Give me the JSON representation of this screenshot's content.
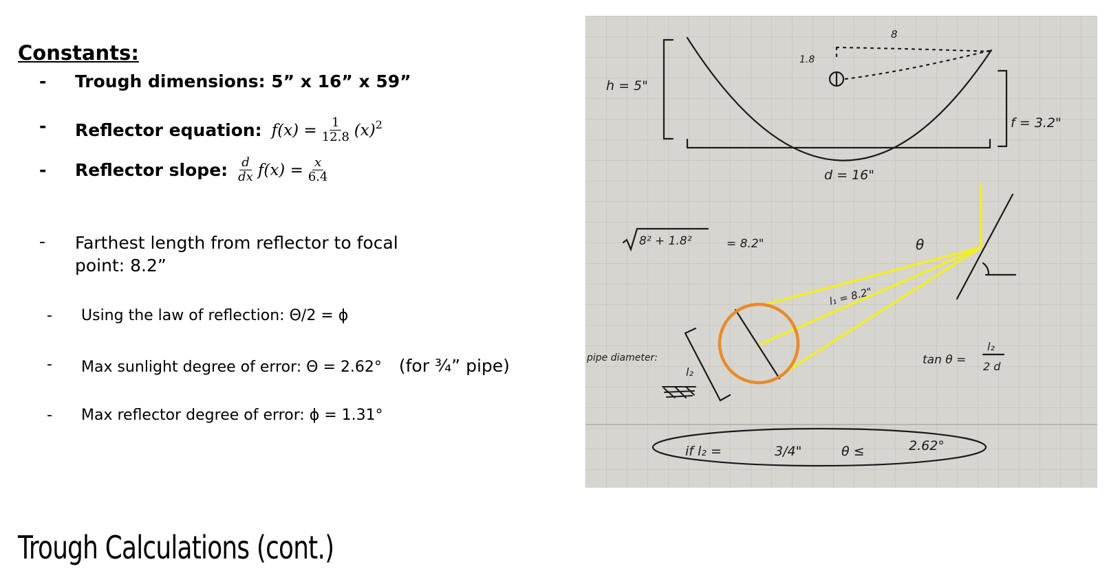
{
  "heading": "Constants:",
  "constants": {
    "trough": "Trough dimensions: 5” x 16” x 59”",
    "reflector_label": "Reflector equation:",
    "reflector_lhs": "f(x) =",
    "reflector_num": "1",
    "reflector_den": "12.8",
    "reflector_rhs": "(x)",
    "reflector_exp": "2",
    "slope_label": "Reflector slope:",
    "slope_d_num": "d",
    "slope_d_den": "dx",
    "slope_mid": "f(x) =",
    "slope_num": "x",
    "slope_den": "6.4"
  },
  "notes": {
    "farthest_line1": "Farthest length from reflector to focal",
    "farthest_line2": "point: 8.2”",
    "law": "Using the law of reflection: Θ/2 = ϕ",
    "sun_error": "Max sunlight degree of error: Θ = 2.62°",
    "sun_error_note": "(for  ¾” pipe)",
    "reflector_error": "Max reflector degree of error: ϕ = 1.31°"
  },
  "title": "Trough Calculations (cont.)",
  "sketch": {
    "h": "h = 5\"",
    "f": "f = 3.2\"",
    "d": "d = 16\"",
    "top_8": "8",
    "top_18": "1.8",
    "sqrt": "8² + 1.8²",
    "eq": "= 8.2\"",
    "theta": "θ",
    "l1": "l₁ = 8.2\"",
    "pipe": "pipe diameter:",
    "l2": "l₂",
    "tan": "tan θ =",
    "tan_num": "l₂",
    "tan_den": "2 d",
    "bottom_if": "if  l₂ =",
    "bottom_frac": "3/4\"",
    "bottom_theta": "θ ≤",
    "bottom_val": "2.62°"
  },
  "colors": {
    "yellow": "#f5ef1a",
    "orange": "#e88a2a",
    "paper": "#d7d5cf",
    "grid": "#bdbdb8"
  }
}
